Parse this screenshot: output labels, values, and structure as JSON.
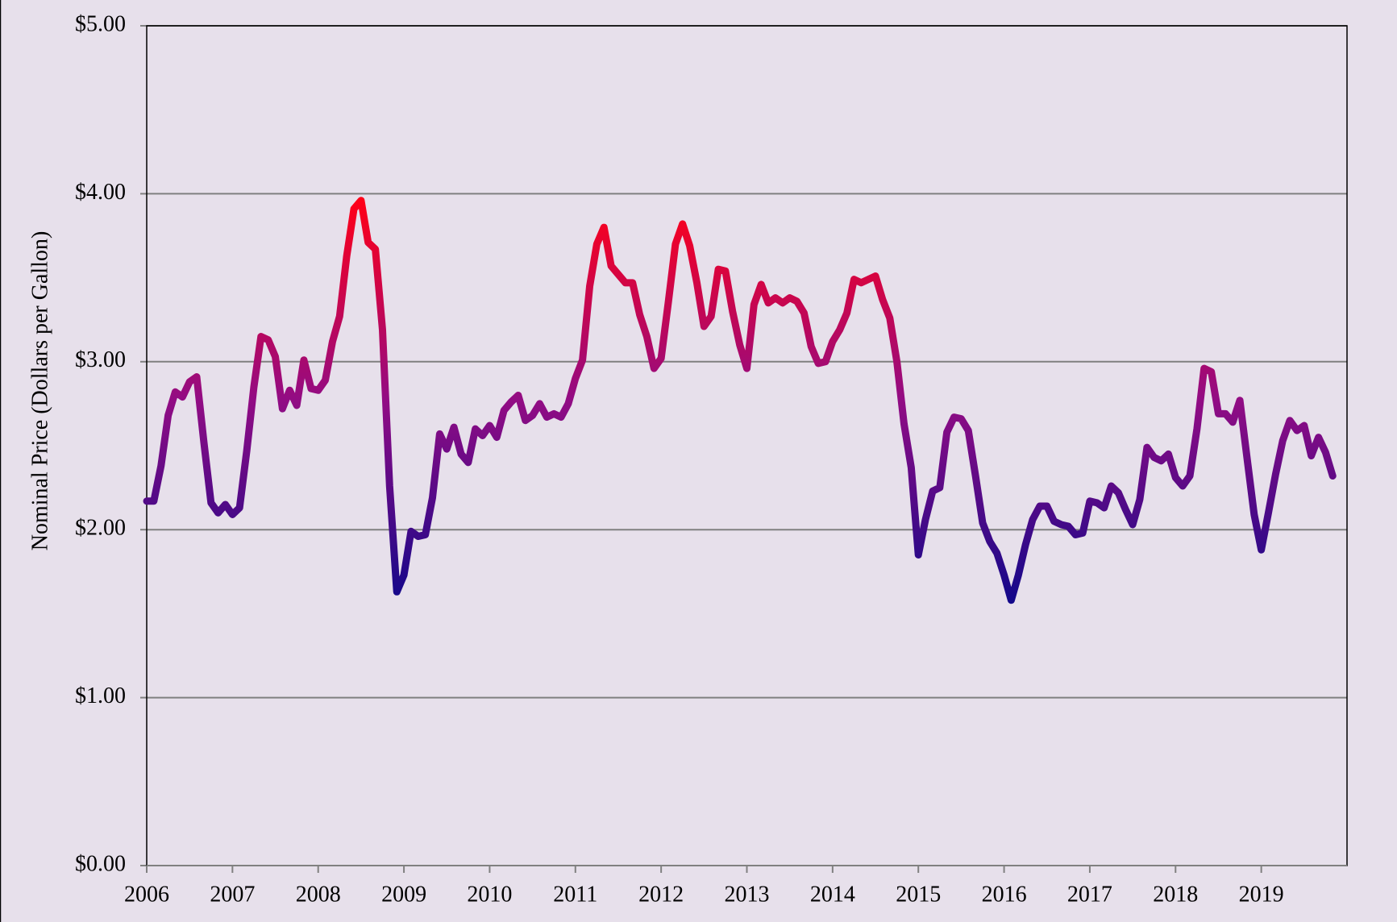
{
  "chart_data": {
    "type": "line",
    "y_label": "Nominal Price (Dollars per Gallon)",
    "x": [
      2006,
      2006.083,
      2006.167,
      2006.25,
      2006.333,
      2006.417,
      2006.5,
      2006.583,
      2006.667,
      2006.75,
      2006.833,
      2006.917,
      2007,
      2007.083,
      2007.167,
      2007.25,
      2007.333,
      2007.417,
      2007.5,
      2007.583,
      2007.667,
      2007.75,
      2007.833,
      2007.917,
      2008,
      2008.083,
      2008.167,
      2008.25,
      2008.333,
      2008.417,
      2008.5,
      2008.583,
      2008.667,
      2008.75,
      2008.833,
      2008.917,
      2009,
      2009.083,
      2009.167,
      2009.25,
      2009.333,
      2009.417,
      2009.5,
      2009.583,
      2009.667,
      2009.75,
      2009.833,
      2009.917,
      2010,
      2010.083,
      2010.167,
      2010.25,
      2010.333,
      2010.417,
      2010.5,
      2010.583,
      2010.667,
      2010.75,
      2010.833,
      2010.917,
      2011,
      2011.083,
      2011.167,
      2011.25,
      2011.333,
      2011.417,
      2011.5,
      2011.583,
      2011.667,
      2011.75,
      2011.833,
      2011.917,
      2012,
      2012.083,
      2012.167,
      2012.25,
      2012.333,
      2012.417,
      2012.5,
      2012.583,
      2012.667,
      2012.75,
      2012.833,
      2012.917,
      2013,
      2013.083,
      2013.167,
      2013.25,
      2013.333,
      2013.417,
      2013.5,
      2013.583,
      2013.667,
      2013.75,
      2013.833,
      2013.917,
      2014,
      2014.083,
      2014.167,
      2014.25,
      2014.333,
      2014.417,
      2014.5,
      2014.583,
      2014.667,
      2014.75,
      2014.833,
      2014.917,
      2015,
      2015.083,
      2015.167,
      2015.25,
      2015.333,
      2015.417,
      2015.5,
      2015.583,
      2015.667,
      2015.75,
      2015.833,
      2015.917,
      2016,
      2016.083,
      2016.167,
      2016.25,
      2016.333,
      2016.417,
      2016.5,
      2016.583,
      2016.667,
      2016.75,
      2016.833,
      2016.917,
      2017,
      2017.083,
      2017.167,
      2017.25,
      2017.333,
      2017.417,
      2017.5,
      2017.583,
      2017.667,
      2017.75,
      2017.833,
      2017.917,
      2018,
      2018.083,
      2018.167,
      2018.25,
      2018.333,
      2018.417,
      2018.5,
      2018.583,
      2018.667,
      2018.75,
      2018.833,
      2018.917,
      2019,
      2019.083,
      2019.167,
      2019.25,
      2019.333,
      2019.417,
      2019.5,
      2019.583,
      2019.667,
      2019.75,
      2019.833
    ],
    "series": [
      {
        "name": null,
        "colors": [
          "#14088a",
          "#920c84",
          "#ff0018"
        ],
        "values": [
          2.17,
          2.17,
          2.38,
          2.68,
          2.82,
          2.79,
          2.88,
          2.91,
          2.52,
          2.16,
          2.1,
          2.15,
          2.09,
          2.13,
          2.47,
          2.85,
          3.15,
          3.13,
          3.03,
          2.72,
          2.83,
          2.74,
          3.01,
          2.84,
          2.83,
          2.89,
          3.12,
          3.27,
          3.63,
          3.91,
          3.96,
          3.71,
          3.67,
          3.19,
          2.26,
          1.63,
          1.73,
          1.99,
          1.96,
          1.97,
          2.19,
          2.57,
          2.48,
          2.61,
          2.45,
          2.4,
          2.6,
          2.56,
          2.62,
          2.55,
          2.71,
          2.76,
          2.8,
          2.65,
          2.68,
          2.75,
          2.67,
          2.69,
          2.67,
          2.75,
          2.9,
          3.01,
          3.45,
          3.7,
          3.8,
          3.57,
          3.52,
          3.47,
          3.47,
          3.28,
          3.15,
          2.96,
          3.02,
          3.35,
          3.7,
          3.82,
          3.69,
          3.47,
          3.21,
          3.27,
          3.55,
          3.54,
          3.3,
          3.1,
          2.96,
          3.34,
          3.46,
          3.35,
          3.38,
          3.35,
          3.38,
          3.36,
          3.29,
          3.09,
          2.99,
          3.0,
          3.12,
          3.19,
          3.29,
          3.49,
          3.47,
          3.49,
          3.51,
          3.37,
          3.26,
          3.0,
          2.63,
          2.37,
          1.85,
          2.06,
          2.23,
          2.25,
          2.58,
          2.67,
          2.66,
          2.59,
          2.32,
          2.04,
          1.93,
          1.86,
          1.73,
          1.58,
          1.73,
          1.91,
          2.06,
          2.14,
          2.14,
          2.05,
          2.03,
          2.02,
          1.97,
          1.98,
          2.17,
          2.16,
          2.13,
          2.26,
          2.22,
          2.12,
          2.03,
          2.18,
          2.49,
          2.43,
          2.41,
          2.45,
          2.31,
          2.26,
          2.32,
          2.6,
          2.96,
          2.94,
          2.69,
          2.69,
          2.64,
          2.77,
          2.43,
          2.09,
          1.88,
          2.1,
          2.33,
          2.53,
          2.65,
          2.59,
          2.62,
          2.44,
          2.55,
          2.46,
          2.32
        ]
      }
    ],
    "xlim": [
      2006,
      2020
    ],
    "xticks": [
      2006,
      2007,
      2008,
      2009,
      2010,
      2011,
      2012,
      2013,
      2014,
      2015,
      2016,
      2017,
      2018,
      2019
    ],
    "ylim": [
      0,
      5
    ],
    "yticks": [
      {
        "value": 0,
        "label": "$0.00"
      },
      {
        "value": 1,
        "label": "$1.00"
      },
      {
        "value": 2,
        "label": "$2.00"
      },
      {
        "value": 3,
        "label": "$3.00"
      },
      {
        "value": 4,
        "label": "$4.00"
      },
      {
        "value": 5,
        "label": "$5.00"
      }
    ],
    "grid": true
  }
}
